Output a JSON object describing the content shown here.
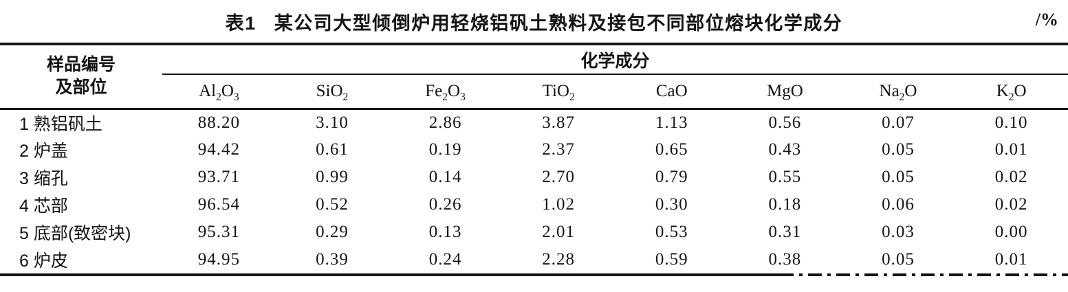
{
  "page": {
    "background": "#ffffff",
    "text_color": "#141414"
  },
  "caption": {
    "label": "表1",
    "title": "某公司大型倾倒炉用轻烧铝矾土熟料及接包不同部位熔块化学成分",
    "unit": "/%"
  },
  "table": {
    "sample_header_line1": "样品编号",
    "sample_header_line2": "及部位",
    "group_header": "化学成分",
    "columns": [
      "Al2O3",
      "SiO2",
      "Fe2O3",
      "TiO2",
      "CaO",
      "MgO",
      "Na2O",
      "K2O"
    ],
    "rows": [
      {
        "sample": "1 熟铝矾土",
        "values": [
          "88.20",
          "3.10",
          "2.86",
          "3.87",
          "1.13",
          "0.56",
          "0.07",
          "0.10"
        ]
      },
      {
        "sample": "2 炉盖",
        "values": [
          "94.42",
          "0.61",
          "0.19",
          "2.37",
          "0.65",
          "0.43",
          "0.05",
          "0.01"
        ]
      },
      {
        "sample": "3 缩孔",
        "values": [
          "93.71",
          "0.99",
          "0.14",
          "2.70",
          "0.79",
          "0.55",
          "0.05",
          "0.02"
        ]
      },
      {
        "sample": "4 芯部",
        "values": [
          "96.54",
          "0.52",
          "0.26",
          "1.02",
          "0.30",
          "0.18",
          "0.06",
          "0.02"
        ]
      },
      {
        "sample": "5 底部(致密块)",
        "values": [
          "95.31",
          "0.29",
          "0.13",
          "2.01",
          "0.53",
          "0.31",
          "0.03",
          "0.00"
        ]
      },
      {
        "sample": "6 炉皮",
        "values": [
          "94.95",
          "0.39",
          "0.24",
          "2.28",
          "0.59",
          "0.38",
          "0.05",
          "0.01"
        ]
      }
    ]
  },
  "chart_data": {
    "type": "table",
    "title": "表1 某公司大型倾倒炉用轻烧铝矾土熟料及接包不同部位熔块化学成分 /%",
    "row_header": "样品编号及部位",
    "column_group": "化学成分",
    "categories": [
      "Al2O3",
      "SiO2",
      "Fe2O3",
      "TiO2",
      "CaO",
      "MgO",
      "Na2O",
      "K2O"
    ],
    "series": [
      {
        "name": "1 熟铝矾土",
        "values": [
          88.2,
          3.1,
          2.86,
          3.87,
          1.13,
          0.56,
          0.07,
          0.1
        ]
      },
      {
        "name": "2 炉盖",
        "values": [
          94.42,
          0.61,
          0.19,
          2.37,
          0.65,
          0.43,
          0.05,
          0.01
        ]
      },
      {
        "name": "3 缩孔",
        "values": [
          93.71,
          0.99,
          0.14,
          2.7,
          0.79,
          0.55,
          0.05,
          0.02
        ]
      },
      {
        "name": "4 芯部",
        "values": [
          96.54,
          0.52,
          0.26,
          1.02,
          0.3,
          0.18,
          0.06,
          0.02
        ]
      },
      {
        "name": "5 底部(致密块)",
        "values": [
          95.31,
          0.29,
          0.13,
          2.01,
          0.53,
          0.31,
          0.03,
          0.0
        ]
      },
      {
        "name": "6 炉皮",
        "values": [
          94.95,
          0.39,
          0.24,
          2.28,
          0.59,
          0.38,
          0.05,
          0.01
        ]
      }
    ],
    "units": "%"
  }
}
